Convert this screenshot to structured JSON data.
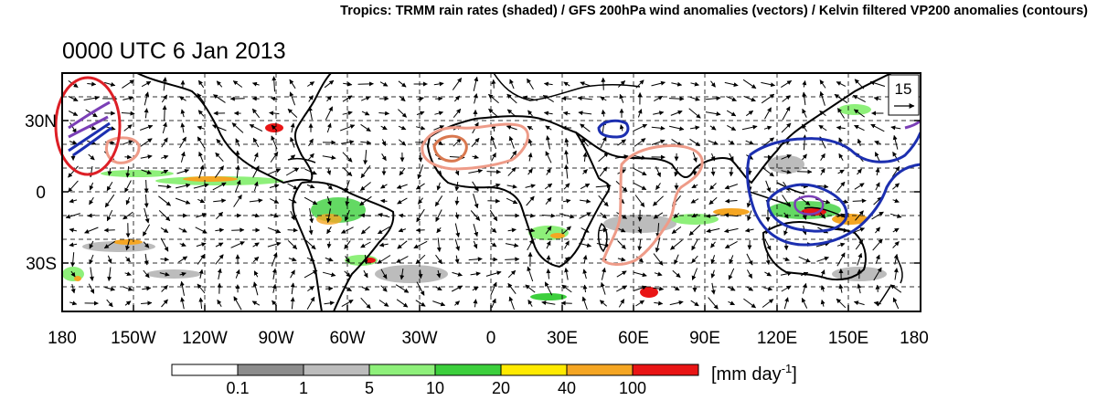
{
  "top_title": "Tropics: TRMM rain rates (shaded) / GFS 200hPa wind anomalies (vectors) / Kelvin filtered VP200 anomalies (contours)",
  "time_title": "0000 UTC 6 Jan 2013",
  "map": {
    "lon_labels": [
      "180",
      "150W",
      "120W",
      "90W",
      "60W",
      "30W",
      "0",
      "30E",
      "60E",
      "90E",
      "120E",
      "150E",
      "180"
    ],
    "lat_labels": [
      "30N",
      "0",
      "30S"
    ],
    "ref_vector_label": "15",
    "colors": {
      "land_outline": "#000000",
      "positive_contour": "#ee9b88",
      "positive_contour_dark": "#d9784f",
      "negative_contour": "#1c2fb0",
      "purple_contour": "#7b3fb6",
      "highlight_circle": "#dd1f26"
    }
  },
  "colorbar": {
    "tick_labels": [
      "0.1",
      "1",
      "5",
      "10",
      "20",
      "40",
      "100"
    ],
    "colors": [
      "#ffffff",
      "#8c8c8c",
      "#bcbcbc",
      "#8ef07a",
      "#3ccf3c",
      "#ffea00",
      "#f5a623",
      "#e91515"
    ],
    "unit_label": "[mm day",
    "unit_exp": "-1",
    "unit_close": "]"
  }
}
